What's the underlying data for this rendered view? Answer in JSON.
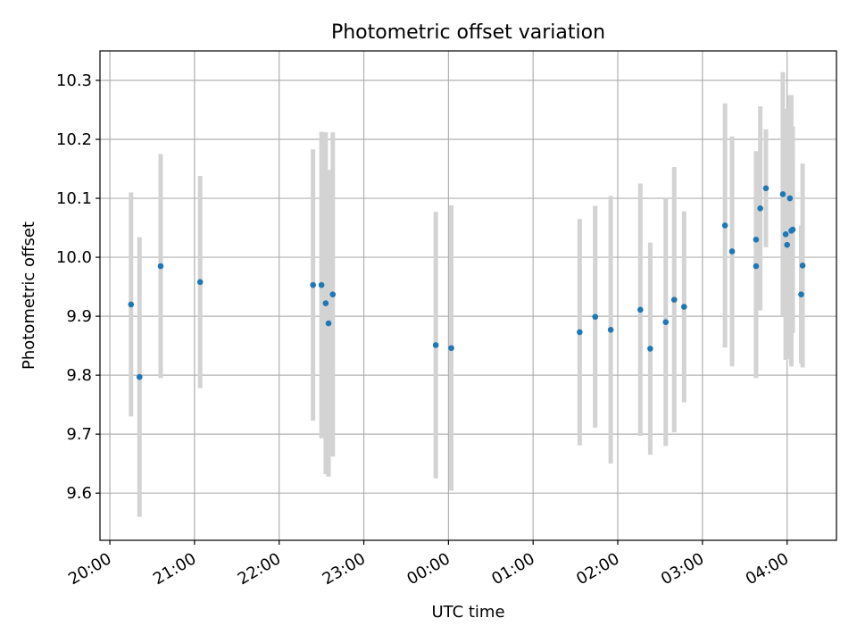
{
  "chart_data": {
    "type": "scatter",
    "title": "Photometric offset variation",
    "xlabel": "UTC time",
    "ylabel": "Photometric offset",
    "x_ticks": [
      "20:00",
      "21:00",
      "22:00",
      "23:00",
      "00:00",
      "01:00",
      "02:00",
      "03:00",
      "04:00"
    ],
    "y_ticks": [
      "9.6",
      "9.7",
      "9.8",
      "9.9",
      "10.0",
      "10.1",
      "10.2",
      "10.3"
    ],
    "xlim": [
      "19:53",
      "04:35"
    ],
    "ylim": [
      9.52,
      10.35
    ],
    "grid": true,
    "colors": {
      "marker": "#1f77b4",
      "errorbar": "#d3d3d3"
    },
    "series": [
      {
        "points": [
          {
            "x": "20:15",
            "y": 9.92,
            "err": 0.19
          },
          {
            "x": "20:21",
            "y": 9.797,
            "err": 0.237
          },
          {
            "x": "20:36",
            "y": 9.985,
            "err": 0.19
          },
          {
            "x": "21:04",
            "y": 9.958,
            "err": 0.18
          },
          {
            "x": "22:24",
            "y": 9.953,
            "err": 0.23
          },
          {
            "x": "22:30",
            "y": 9.953,
            "err": 0.26
          },
          {
            "x": "22:33",
            "y": 9.922,
            "err": 0.29
          },
          {
            "x": "22:35",
            "y": 9.888,
            "err": 0.26
          },
          {
            "x": "22:38",
            "y": 9.937,
            "err": 0.275
          },
          {
            "x": "23:51",
            "y": 9.851,
            "err": 0.226
          },
          {
            "x": "00:02",
            "y": 9.846,
            "err": 0.242
          },
          {
            "x": "01:33",
            "y": 9.873,
            "err": 0.192
          },
          {
            "x": "01:44",
            "y": 9.899,
            "err": 0.188
          },
          {
            "x": "01:55",
            "y": 9.877,
            "err": 0.227
          },
          {
            "x": "02:16",
            "y": 9.911,
            "err": 0.214
          },
          {
            "x": "02:23",
            "y": 9.845,
            "err": 0.18
          },
          {
            "x": "02:34",
            "y": 9.89,
            "err": 0.21
          },
          {
            "x": "02:40",
            "y": 9.928,
            "err": 0.225
          },
          {
            "x": "02:47",
            "y": 9.916,
            "err": 0.162
          },
          {
            "x": "03:16",
            "y": 10.054,
            "err": 0.207
          },
          {
            "x": "03:21",
            "y": 10.01,
            "err": 0.195
          },
          {
            "x": "03:38",
            "y": 9.985,
            "err": 0.19
          },
          {
            "x": "03:38",
            "y": 10.03,
            "err": 0.15
          },
          {
            "x": "03:41",
            "y": 10.083,
            "err": 0.173
          },
          {
            "x": "03:45",
            "y": 10.117,
            "err": 0.1
          },
          {
            "x": "03:57",
            "y": 10.107,
            "err": 0.207
          },
          {
            "x": "03:59",
            "y": 10.039,
            "err": 0.213
          },
          {
            "x": "04:00",
            "y": 10.021,
            "err": 0.194
          },
          {
            "x": "04:02",
            "y": 10.1,
            "err": 0.175
          },
          {
            "x": "04:03",
            "y": 10.045,
            "err": 0.23
          },
          {
            "x": "04:04",
            "y": 10.047,
            "err": 0.175
          },
          {
            "x": "04:10",
            "y": 9.937,
            "err": 0.117
          },
          {
            "x": "04:11",
            "y": 9.986,
            "err": 0.173
          }
        ]
      }
    ]
  }
}
